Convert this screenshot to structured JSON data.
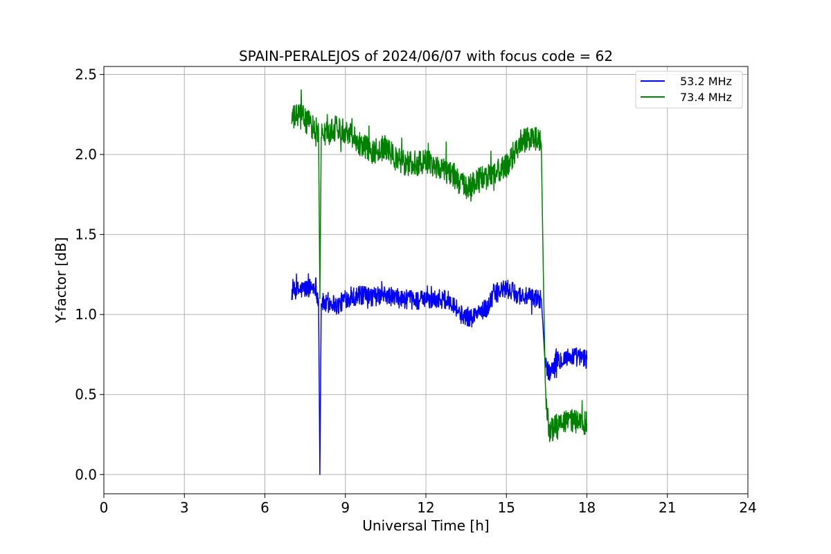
{
  "chart_data": {
    "type": "line",
    "title": "SPAIN-PERALEJOS of 2024/06/07 with focus code = 62",
    "xlabel": "Universal Time [h]",
    "ylabel": "Y-factor [dB]",
    "xlim": [
      0,
      24
    ],
    "ylim": [
      -0.12,
      2.55
    ],
    "xticks": [
      0,
      3,
      6,
      9,
      12,
      15,
      18,
      21,
      24
    ],
    "xtick_labels": [
      "0",
      "3",
      "6",
      "9",
      "12",
      "15",
      "18",
      "21",
      "24"
    ],
    "yticks": [
      0.0,
      0.5,
      1.0,
      1.5,
      2.0,
      2.5
    ],
    "ytick_labels": [
      "0.0",
      "0.5",
      "1.0",
      "1.5",
      "2.0",
      "2.5"
    ],
    "grid": true,
    "legend_position": "top-right",
    "series": [
      {
        "name": "53.2 MHz",
        "color": "#0000ff",
        "noise_amplitude": 0.06,
        "points": [
          [
            7.0,
            1.14
          ],
          [
            7.5,
            1.16
          ],
          [
            7.9,
            1.18
          ],
          [
            8.0,
            1.08
          ],
          [
            8.05,
            0.0
          ],
          [
            8.1,
            1.08
          ],
          [
            8.3,
            1.06
          ],
          [
            8.5,
            1.08
          ],
          [
            8.7,
            1.05
          ],
          [
            9.0,
            1.1
          ],
          [
            9.5,
            1.12
          ],
          [
            10.0,
            1.11
          ],
          [
            10.5,
            1.12
          ],
          [
            11.0,
            1.1
          ],
          [
            11.5,
            1.09
          ],
          [
            12.0,
            1.09
          ],
          [
            12.5,
            1.1
          ],
          [
            13.0,
            1.08
          ],
          [
            13.3,
            1.0
          ],
          [
            13.7,
            0.98
          ],
          [
            14.0,
            1.02
          ],
          [
            14.3,
            1.04
          ],
          [
            14.5,
            1.13
          ],
          [
            15.0,
            1.16
          ],
          [
            15.5,
            1.12
          ],
          [
            16.0,
            1.1
          ],
          [
            16.3,
            1.1
          ],
          [
            16.45,
            0.7
          ],
          [
            16.6,
            0.63
          ],
          [
            16.8,
            0.7
          ],
          [
            17.0,
            0.72
          ],
          [
            17.5,
            0.74
          ],
          [
            18.0,
            0.72
          ]
        ]
      },
      {
        "name": "73.4 MHz",
        "color": "#008000",
        "noise_amplitude": 0.08,
        "points": [
          [
            7.0,
            2.22
          ],
          [
            7.3,
            2.25
          ],
          [
            7.6,
            2.2
          ],
          [
            8.0,
            2.14
          ],
          [
            8.05,
            1.1
          ],
          [
            8.1,
            2.12
          ],
          [
            8.4,
            2.14
          ],
          [
            8.7,
            2.17
          ],
          [
            9.0,
            2.15
          ],
          [
            9.3,
            2.12
          ],
          [
            9.6,
            2.06
          ],
          [
            10.0,
            2.02
          ],
          [
            10.5,
            2.04
          ],
          [
            11.0,
            1.96
          ],
          [
            11.5,
            1.94
          ],
          [
            12.0,
            1.96
          ],
          [
            12.5,
            1.92
          ],
          [
            13.0,
            1.88
          ],
          [
            13.5,
            1.78
          ],
          [
            14.0,
            1.84
          ],
          [
            14.5,
            1.88
          ],
          [
            15.0,
            1.92
          ],
          [
            15.5,
            2.08
          ],
          [
            16.0,
            2.1
          ],
          [
            16.3,
            2.07
          ],
          [
            16.45,
            0.5
          ],
          [
            16.6,
            0.28
          ],
          [
            16.9,
            0.3
          ],
          [
            17.0,
            0.3
          ],
          [
            17.5,
            0.34
          ],
          [
            18.0,
            0.32
          ]
        ]
      }
    ]
  }
}
